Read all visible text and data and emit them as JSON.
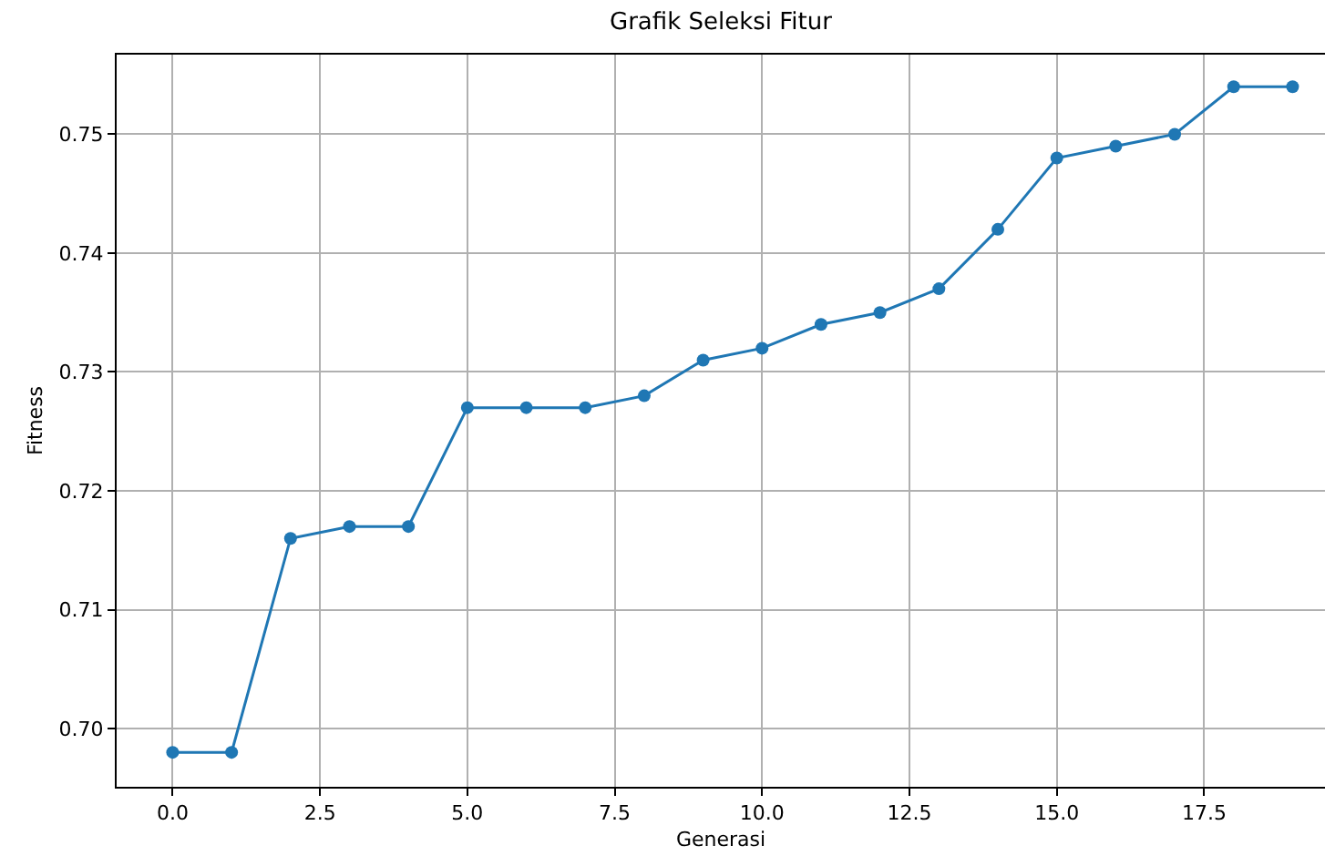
{
  "chart_data": {
    "type": "line",
    "title": "Grafik Seleksi Fitur",
    "xlabel": "Generasi",
    "ylabel": "Fitness",
    "x": [
      0,
      1,
      2,
      3,
      4,
      5,
      6,
      7,
      8,
      9,
      10,
      11,
      12,
      13,
      14,
      15,
      16,
      17,
      18,
      19
    ],
    "series": [
      {
        "color": "#1f77b4",
        "values": [
          0.698,
          0.698,
          0.716,
          0.717,
          0.717,
          0.727,
          0.727,
          0.727,
          0.728,
          0.731,
          0.732,
          0.734,
          0.735,
          0.737,
          0.742,
          0.748,
          0.749,
          0.75,
          0.754,
          0.754
        ]
      }
    ],
    "xlim": [
      -0.95,
      19.55
    ],
    "xticks": [
      {
        "value": 0,
        "label": "0.0"
      },
      {
        "value": 2.5,
        "label": "2.5"
      },
      {
        "value": 5,
        "label": "5.0"
      },
      {
        "value": 7.5,
        "label": "7.5"
      },
      {
        "value": 10,
        "label": "10.0"
      },
      {
        "value": 12.5,
        "label": "12.5"
      },
      {
        "value": 15,
        "label": "15.0"
      },
      {
        "value": 17.5,
        "label": "17.5"
      }
    ],
    "ylim": [
      0.6951,
      0.7567
    ],
    "yticks": [
      {
        "value": 0.7,
        "label": "0.70"
      },
      {
        "value": 0.71,
        "label": "0.71"
      },
      {
        "value": 0.72,
        "label": "0.72"
      },
      {
        "value": 0.73,
        "label": "0.73"
      },
      {
        "value": 0.74,
        "label": "0.74"
      },
      {
        "value": 0.75,
        "label": "0.75"
      }
    ],
    "grid": true,
    "marker": "circle",
    "line_style": "solid",
    "legend": false
  }
}
